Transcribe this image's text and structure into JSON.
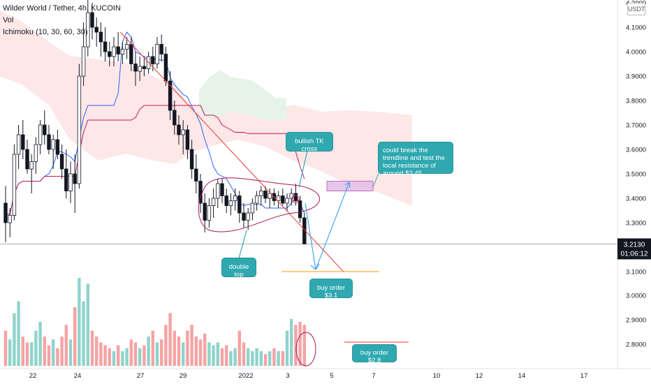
{
  "header": {
    "title": "Wilder World / Tether, 4h, KUCOIN",
    "vol": "Vol",
    "ichimoku": "Ichimoku (10, 30, 60, 30)"
  },
  "currency_label": "USDT",
  "price_axis": {
    "ticks": [
      "4.2000",
      "4.1000",
      "4.0000",
      "3.9000",
      "3.8000",
      "3.7000",
      "3.6000",
      "3.5000",
      "3.4000",
      "3.3000",
      "3.1000",
      "3.0000",
      "2.9000",
      "2.8000"
    ],
    "current_price": "3.2130",
    "countdown": "01:06:12",
    "current_color": "#131722"
  },
  "time_axis": {
    "ticks": [
      "22",
      "24",
      "27",
      "29",
      "2022",
      "3",
      "5",
      "7",
      "10",
      "12",
      "14",
      "17"
    ]
  },
  "annotations": {
    "bullish_tk": "bullish TK cross",
    "break_trendline": "could break the trendline and test the local resistance of around $3.45",
    "double_top": "double top",
    "buy_31": "buy order $3.1",
    "buy_28": "buy order $2.8"
  },
  "colors": {
    "up": "#131722",
    "down": "#131722",
    "vol_up": "#8fd3cb",
    "vol_down": "#f5a3a3",
    "tenkan": "#2962ff",
    "kijun": "#c2185b",
    "cloud_bear": "#fde4e4",
    "cloud_bull": "#e6f3e8",
    "trendline": "#e53935",
    "callout": "#2fa8b0",
    "resistance_box": "#e1bee7"
  },
  "chart_data": {
    "type": "candlestick",
    "symbol": "Wilder World / Tether",
    "interval": "4h",
    "exchange": "KUCOIN",
    "ylim": [
      2.72,
      4.22
    ],
    "y_ticks": [
      4.2,
      4.1,
      4.0,
      3.9,
      3.8,
      3.7,
      3.6,
      3.5,
      3.4,
      3.3,
      3.1,
      3.0,
      2.9,
      2.8
    ],
    "current_price": 3.213,
    "ohlc": [
      [
        3.38,
        3.45,
        3.22,
        3.3
      ],
      [
        3.3,
        3.36,
        3.24,
        3.33
      ],
      [
        3.33,
        3.62,
        3.31,
        3.58
      ],
      [
        3.58,
        3.7,
        3.52,
        3.66
      ],
      [
        3.66,
        3.72,
        3.56,
        3.6
      ],
      [
        3.6,
        3.64,
        3.5,
        3.52
      ],
      [
        3.52,
        3.58,
        3.42,
        3.55
      ],
      [
        3.55,
        3.65,
        3.5,
        3.62
      ],
      [
        3.62,
        3.72,
        3.58,
        3.7
      ],
      [
        3.7,
        3.76,
        3.62,
        3.66
      ],
      [
        3.66,
        3.7,
        3.58,
        3.6
      ],
      [
        3.6,
        3.66,
        3.52,
        3.64
      ],
      [
        3.64,
        3.68,
        3.56,
        3.58
      ],
      [
        3.58,
        3.62,
        3.48,
        3.52
      ],
      [
        3.52,
        3.6,
        3.4,
        3.43
      ],
      [
        3.43,
        3.55,
        3.38,
        3.5
      ],
      [
        3.5,
        3.58,
        3.34,
        3.46
      ],
      [
        3.46,
        3.95,
        3.44,
        3.9
      ],
      [
        3.9,
        4.12,
        3.86,
        4.02
      ],
      [
        4.02,
        4.22,
        3.98,
        4.16
      ],
      [
        4.16,
        4.2,
        4.05,
        4.1
      ],
      [
        4.1,
        4.14,
        4.02,
        4.08
      ],
      [
        4.08,
        4.12,
        3.98,
        4.04
      ],
      [
        4.04,
        4.1,
        3.96,
        4.0
      ],
      [
        4.0,
        4.04,
        3.94,
        3.98
      ],
      [
        3.98,
        4.06,
        3.94,
        4.02
      ],
      [
        4.02,
        4.08,
        3.96,
        3.99
      ],
      [
        3.99,
        4.04,
        3.95,
        4.01
      ],
      [
        4.01,
        4.06,
        3.97,
        4.03
      ],
      [
        4.03,
        4.06,
        3.92,
        3.95
      ],
      [
        3.95,
        4.0,
        3.86,
        3.92
      ],
      [
        3.92,
        3.98,
        3.88,
        3.94
      ],
      [
        3.94,
        3.98,
        3.9,
        3.93
      ],
      [
        3.93,
        4.0,
        3.91,
        3.98
      ],
      [
        3.98,
        4.02,
        3.92,
        3.95
      ],
      [
        3.95,
        4.06,
        3.93,
        4.03
      ],
      [
        4.03,
        4.07,
        3.96,
        3.99
      ],
      [
        3.99,
        4.02,
        3.86,
        3.88
      ],
      [
        3.88,
        3.92,
        3.72,
        3.76
      ],
      [
        3.76,
        3.8,
        3.66,
        3.7
      ],
      [
        3.7,
        3.74,
        3.62,
        3.66
      ],
      [
        3.66,
        3.72,
        3.58,
        3.68
      ],
      [
        3.68,
        3.7,
        3.56,
        3.6
      ],
      [
        3.6,
        3.64,
        3.48,
        3.52
      ],
      [
        3.52,
        3.58,
        3.42,
        3.47
      ],
      [
        3.47,
        3.5,
        3.34,
        3.38
      ],
      [
        3.38,
        3.42,
        3.26,
        3.31
      ],
      [
        3.31,
        3.4,
        3.28,
        3.37
      ],
      [
        3.37,
        3.44,
        3.32,
        3.4
      ],
      [
        3.4,
        3.48,
        3.36,
        3.46
      ],
      [
        3.46,
        3.48,
        3.38,
        3.41
      ],
      [
        3.41,
        3.44,
        3.34,
        3.37
      ],
      [
        3.37,
        3.42,
        3.33,
        3.39
      ],
      [
        3.39,
        3.44,
        3.35,
        3.41
      ],
      [
        3.41,
        3.43,
        3.3,
        3.34
      ],
      [
        3.34,
        3.38,
        3.28,
        3.31
      ],
      [
        3.31,
        3.36,
        3.27,
        3.34
      ],
      [
        3.34,
        3.4,
        3.31,
        3.38
      ],
      [
        3.38,
        3.43,
        3.35,
        3.41
      ],
      [
        3.41,
        3.45,
        3.37,
        3.43
      ],
      [
        3.43,
        3.45,
        3.38,
        3.4
      ],
      [
        3.4,
        3.44,
        3.36,
        3.42
      ],
      [
        3.42,
        3.44,
        3.37,
        3.39
      ],
      [
        3.39,
        3.43,
        3.36,
        3.41
      ],
      [
        3.41,
        3.44,
        3.37,
        3.38
      ],
      [
        3.38,
        3.42,
        3.35,
        3.4
      ],
      [
        3.4,
        3.44,
        3.37,
        3.42
      ],
      [
        3.42,
        3.46,
        3.37,
        3.39
      ],
      [
        3.39,
        3.41,
        3.3,
        3.32
      ],
      [
        3.32,
        3.34,
        3.22,
        3.213
      ]
    ],
    "volume": [
      0.12,
      0.09,
      0.18,
      0.22,
      0.1,
      0.08,
      0.08,
      0.12,
      0.15,
      0.1,
      0.07,
      0.09,
      0.06,
      0.1,
      0.14,
      0.09,
      0.2,
      0.3,
      0.22,
      0.28,
      0.12,
      0.1,
      0.08,
      0.07,
      0.06,
      0.05,
      0.07,
      0.05,
      0.06,
      0.09,
      0.08,
      0.06,
      0.07,
      0.1,
      0.12,
      0.08,
      0.09,
      0.14,
      0.18,
      0.12,
      0.1,
      0.08,
      0.12,
      0.14,
      0.1,
      0.09,
      0.11,
      0.08,
      0.07,
      0.08,
      0.06,
      0.07,
      0.05,
      0.06,
      0.12,
      0.08,
      0.06,
      0.05,
      0.06,
      0.05,
      0.04,
      0.05,
      0.06,
      0.05,
      0.05,
      0.12,
      0.16,
      0.14,
      0.15,
      0.14
    ],
    "trendline": {
      "from": [
        26.5,
        4.08
      ],
      "to": [
        78,
        3.1
      ]
    },
    "resistance_zone": [
      3.43,
      3.47
    ],
    "buy_levels": [
      3.1,
      2.8
    ]
  }
}
